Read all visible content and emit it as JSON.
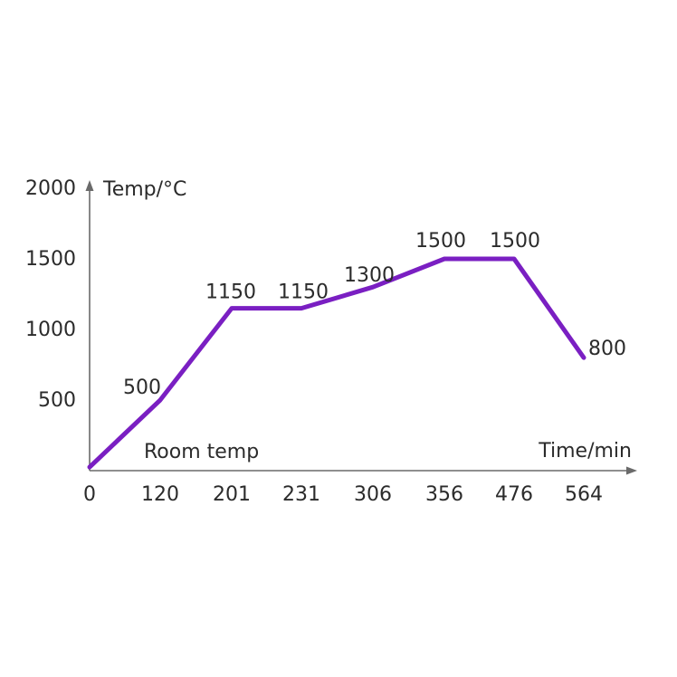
{
  "chart_data": {
    "type": "line",
    "title": "",
    "xlabel": "Time/min",
    "ylabel": "Temp/°C",
    "categories": [
      "0",
      "120",
      "201",
      "231",
      "306",
      "356",
      "476",
      "564"
    ],
    "y_ticks": [
      "500",
      "1000",
      "1500",
      "2000"
    ],
    "series": [
      {
        "values": [
          25,
          500,
          1150,
          1150,
          1300,
          1500,
          1500,
          800
        ],
        "point_labels": [
          "Room temp",
          "500",
          "1150",
          "1150",
          "1300",
          "1500",
          "1500",
          "800"
        ]
      }
    ],
    "ylim": [
      0,
      2000
    ],
    "grid": false,
    "legend": "none",
    "line_color": "#7a1fc2"
  }
}
